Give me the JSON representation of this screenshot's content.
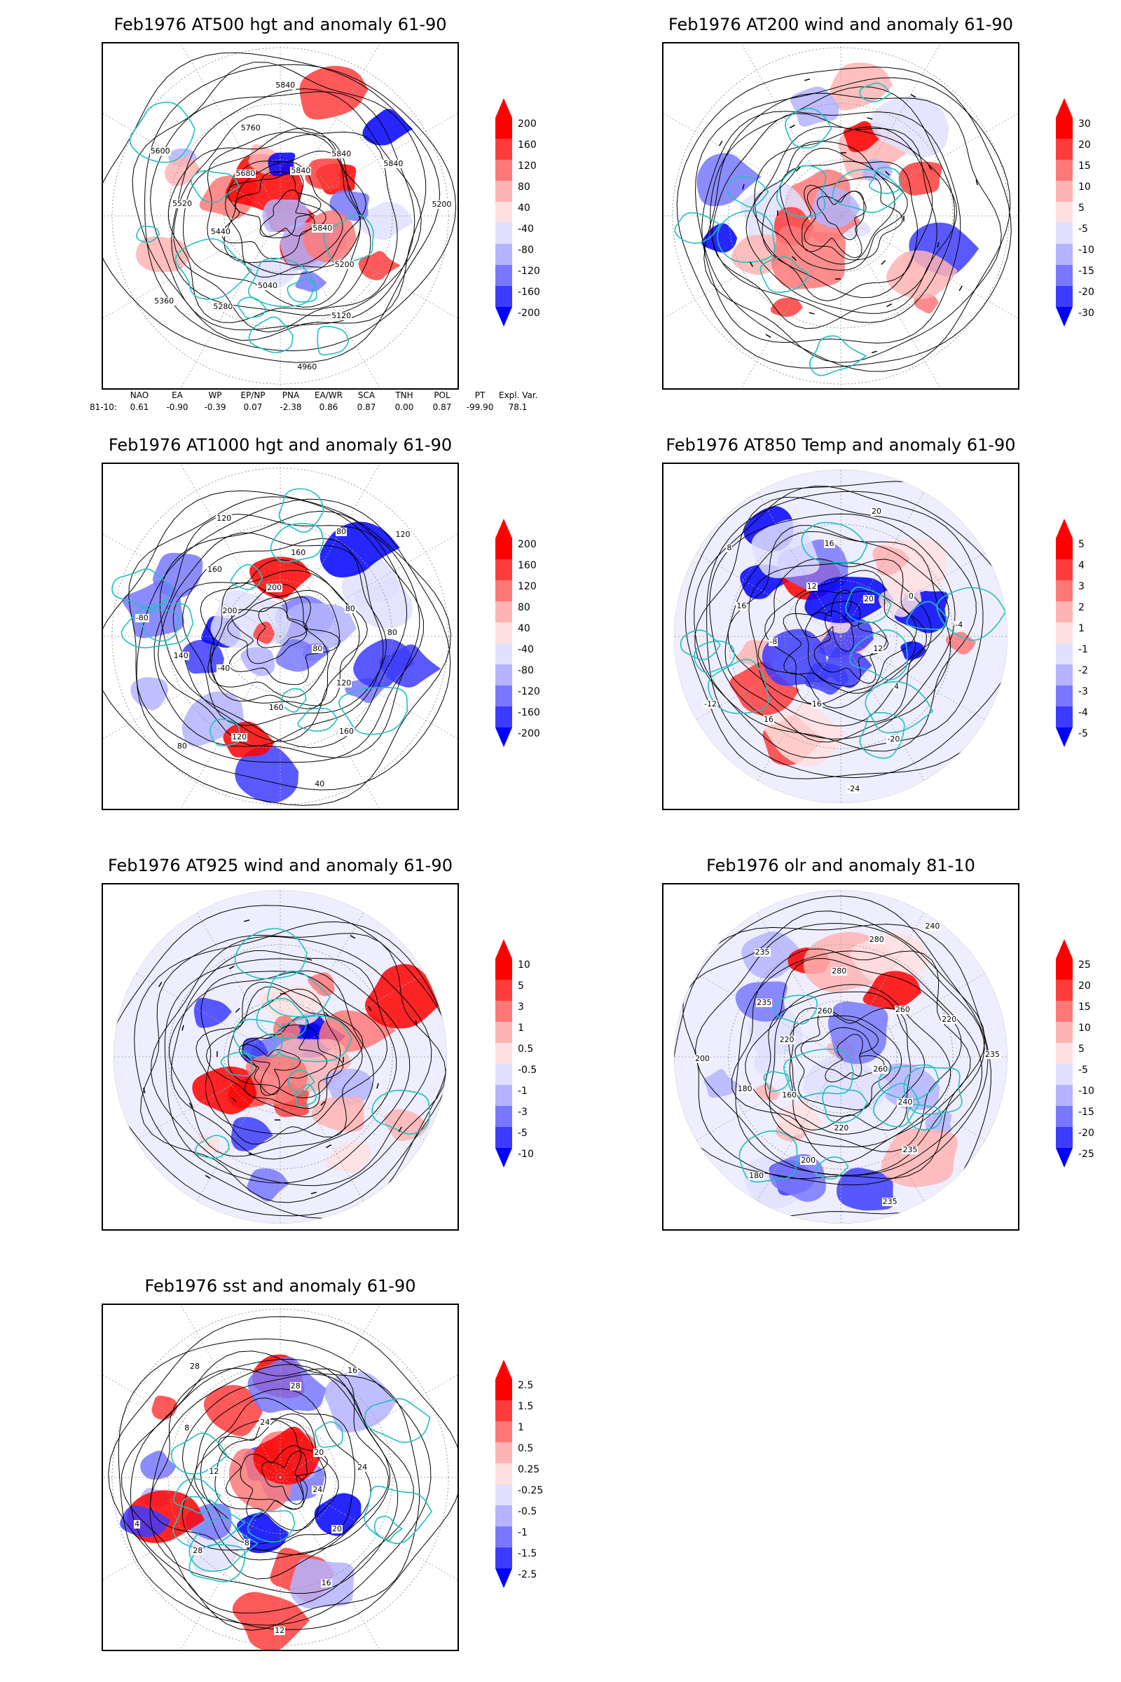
{
  "panels": [
    {
      "id": "p1",
      "title": "Feb1976 AT500 hgt and anomaly 61-90",
      "shape": "square",
      "contour_labels": [
        "5840",
        "5200",
        "5120",
        "4960",
        "5040",
        "5280",
        "5360",
        "5440",
        "5520",
        "5600",
        "5680",
        "5760",
        "5840",
        "5840",
        "5840",
        "5840",
        "5200"
      ],
      "colorbar": {
        "min_color": "#0000ff",
        "max_color": "#ff0000",
        "ticks": [
          "200",
          "160",
          "120",
          "80",
          "40",
          "-40",
          "-80",
          "-120",
          "-160",
          "-200"
        ]
      }
    },
    {
      "id": "p2",
      "title": "Feb1976 AT200 wind and anomaly 61-90",
      "shape": "square",
      "contour_labels": [],
      "colorbar": {
        "min_color": "#0000ff",
        "max_color": "#ff0000",
        "ticks": [
          "30",
          "20",
          "15",
          "10",
          "5",
          "-5",
          "-10",
          "-15",
          "-20",
          "-30"
        ]
      }
    },
    {
      "id": "p3",
      "title": "Feb1976 AT1000 hgt and anomaly 61-90",
      "shape": "square",
      "contour_labels": [
        "80",
        "120",
        "160",
        "40",
        "160",
        "120",
        "80",
        "-40",
        "140",
        "-80",
        "200",
        "160",
        "120",
        "200",
        "160",
        "80",
        "120",
        "80",
        "80"
      ],
      "colorbar": {
        "min_color": "#0000ff",
        "max_color": "#ff0000",
        "ticks": [
          "200",
          "160",
          "120",
          "80",
          "40",
          "-40",
          "-80",
          "-120",
          "-160",
          "-200"
        ]
      }
    },
    {
      "id": "p4",
      "title": "Feb1976 AT850 Temp and anomaly 61-90",
      "shape": "circle",
      "contour_labels": [
        "12",
        "4",
        "-20",
        "-24",
        "16",
        "16",
        "-12",
        "-8",
        "16",
        "8",
        "12",
        "16",
        "20",
        "20",
        "0",
        "-4"
      ],
      "colorbar": {
        "min_color": "#0000ff",
        "max_color": "#ff0000",
        "ticks": [
          "5",
          "4",
          "3",
          "2",
          "1",
          "-1",
          "-2",
          "-3",
          "-4",
          "-5"
        ]
      }
    },
    {
      "id": "p5",
      "title": "Feb1976 AT925 wind and anomaly 61-90",
      "shape": "circle",
      "contour_labels": [],
      "colorbar": {
        "min_color": "#0000ff",
        "max_color": "#ff0000",
        "ticks": [
          "10",
          "5",
          "3",
          "1",
          "0.5",
          "-0.5",
          "-1",
          "-3",
          "-5",
          "-10"
        ]
      }
    },
    {
      "id": "p6",
      "title": "Feb1976 olr and anomaly 81-10",
      "shape": "circle",
      "contour_labels": [
        "260",
        "240",
        "235",
        "235",
        "220",
        "200",
        "180",
        "160",
        "180",
        "200",
        "220",
        "235",
        "235",
        "260",
        "280",
        "280",
        "240",
        "260",
        "220",
        "235"
      ],
      "colorbar": {
        "min_color": "#0000ff",
        "max_color": "#ff0000",
        "ticks": [
          "25",
          "20",
          "15",
          "10",
          "5",
          "-5",
          "-10",
          "-15",
          "-20",
          "-25"
        ]
      }
    },
    {
      "id": "p7",
      "title": "Feb1976 sst and anomaly 61-90",
      "shape": "square",
      "contour_labels": [
        "24",
        "20",
        "16",
        "12",
        "8",
        "28",
        "4",
        "12",
        "8",
        "28",
        "24",
        "28",
        "16",
        "20",
        "24"
      ],
      "colorbar": {
        "min_color": "#0000ff",
        "max_color": "#ff0000",
        "ticks": [
          "2.5",
          "1.5",
          "1",
          "0.5",
          "0.25",
          "-0.25",
          "-0.5",
          "-1",
          "-1.5",
          "-2.5"
        ]
      }
    }
  ],
  "indices": {
    "row_label": "81-10:",
    "headers": [
      "NAO",
      "EA",
      "WP",
      "EP/NP",
      "PNA",
      "EA/WR",
      "SCA",
      "TNH",
      "POL",
      "PT",
      "Expl. Var."
    ],
    "values": [
      "0.61",
      "-0.90",
      "-0.39",
      "0.07",
      "-2.38",
      "0.86",
      "0.87",
      "0.00",
      "0.87",
      "-99.90",
      "78.1"
    ]
  },
  "colors": {
    "coastline": "#20c0c0",
    "contour": "#000000",
    "neg_strong": "#0000ff",
    "neg_light": "#d8d8ff",
    "pos_light": "#ffd8d8",
    "pos_strong": "#ff0000"
  }
}
